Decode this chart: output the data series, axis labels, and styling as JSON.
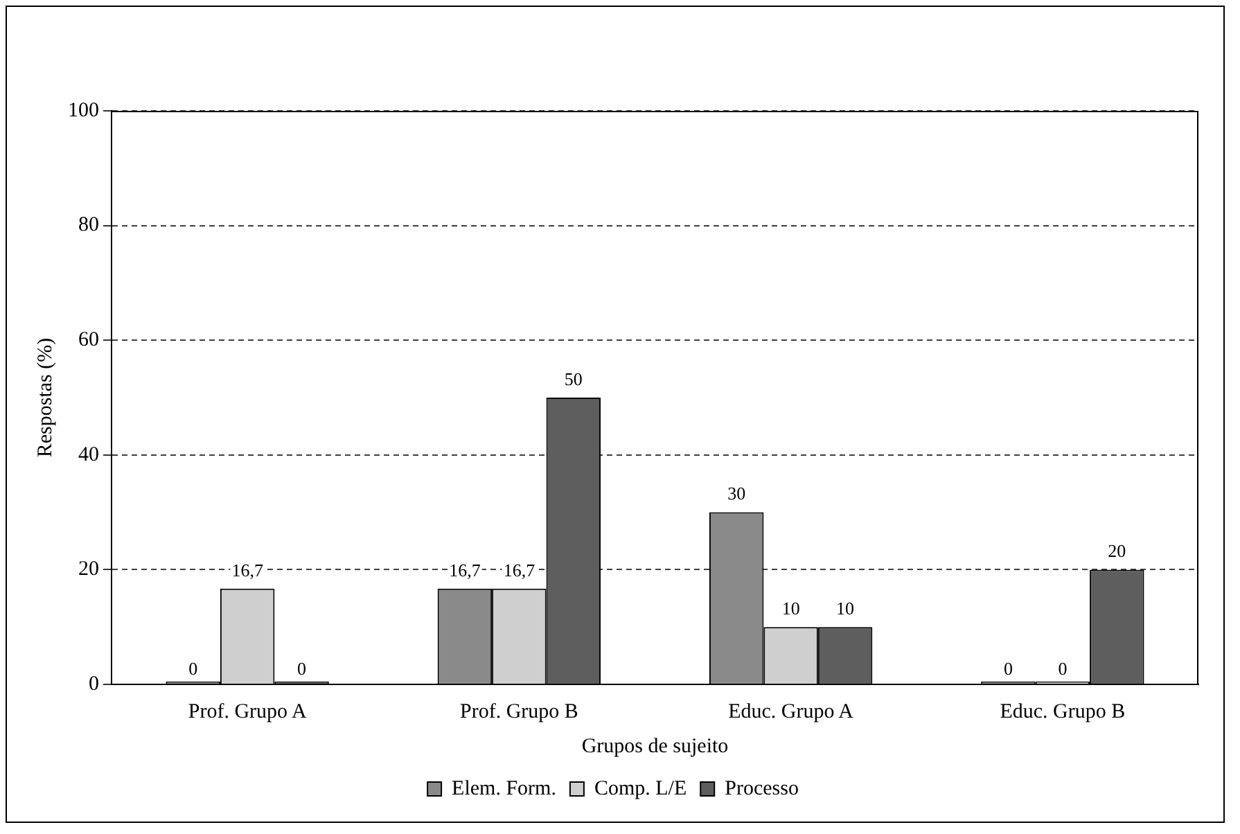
{
  "chart_data": {
    "type": "bar",
    "xlabel": "Grupos de sujeito",
    "ylabel": "Respostas (%)",
    "categories": [
      "Prof. Grupo A",
      "Prof. Grupo B",
      "Educ. Grupo A",
      "Educ. Grupo B"
    ],
    "series": [
      {
        "name": "Elem. Form.",
        "color": "#8a8a8a",
        "values": [
          0,
          16.7,
          30,
          0
        ],
        "value_labels": [
          "0",
          "16,7",
          "30",
          "0"
        ]
      },
      {
        "name": "Comp. L/E",
        "color": "#cfcfcf",
        "values": [
          16.7,
          16.7,
          10,
          0
        ],
        "value_labels": [
          "16,7",
          "16,7",
          "10",
          "0"
        ]
      },
      {
        "name": "Processo",
        "color": "#5e5e5e",
        "values": [
          0,
          50,
          10,
          20
        ],
        "value_labels": [
          "0",
          "50",
          "10",
          "20"
        ]
      }
    ],
    "ylim": [
      0,
      100
    ],
    "yticks": [
      0,
      20,
      40,
      60,
      80,
      100
    ],
    "grid": "y",
    "legend": "bottom"
  }
}
